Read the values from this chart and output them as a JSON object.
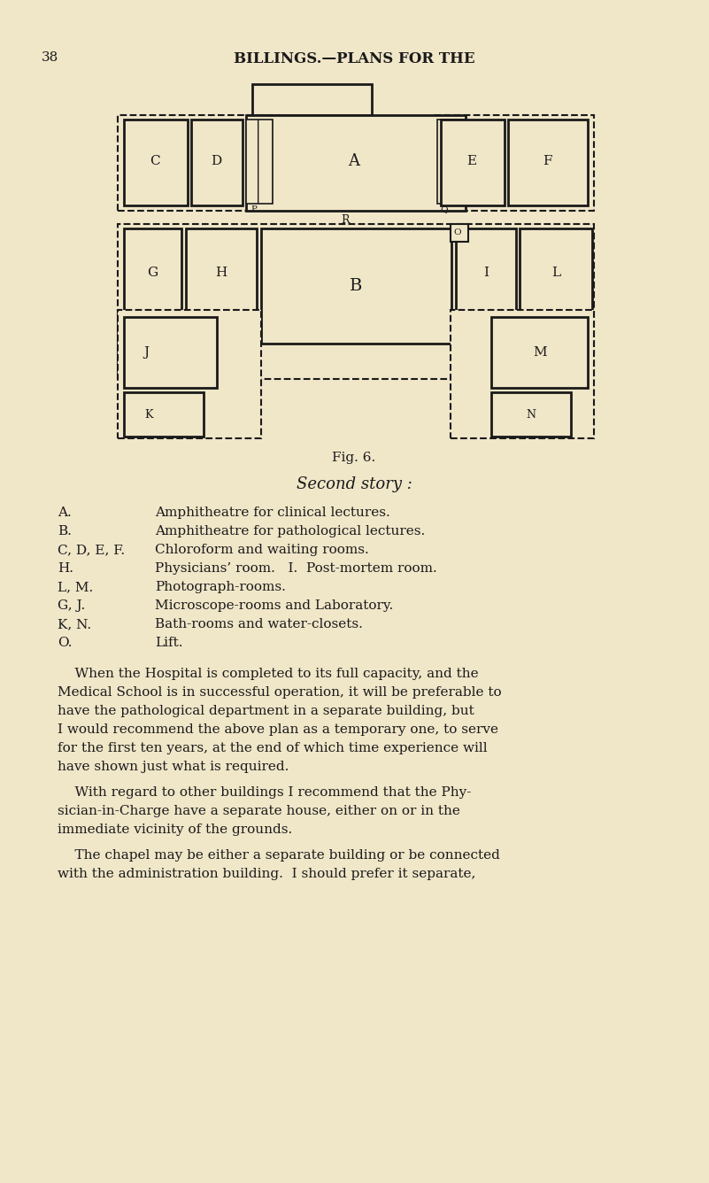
{
  "bg_color": "#f0e6c8",
  "text_color": "#1a1a1a",
  "page_number": "38",
  "header_text": "BILLINGS.—PLANS FOR THE",
  "fig_caption": "Fig. 6.",
  "subtitle": "Second story :",
  "legend_items": [
    [
      "A.",
      "Amphitheatre for clinical lectures."
    ],
    [
      "B.",
      "Amphitheatre for pathological lectures."
    ],
    [
      "C, D, E, F.",
      "Chloroform and waiting rooms."
    ],
    [
      "H.",
      "Physicians’ room.   I.  Post-mortem room."
    ],
    [
      "L, M.",
      "Photograph-rooms."
    ],
    [
      "G, J.",
      "Microscope-rooms and Laboratory."
    ],
    [
      "K, N.",
      "Bath-rooms and water-closets."
    ],
    [
      "O.",
      "Lift."
    ]
  ],
  "body_paragraphs_lines": [
    "    When the Hospital is completed to its full capacity, and the",
    "Medical School is in successful operation, it will be preferable to",
    "have the pathological department in a separate building, but",
    "I would recommend the above plan as a temporary one, to serve",
    "for the first ten years, at the end of which time experience will",
    "have shown just what is required.",
    "PARA",
    "    With regard to other buildings I recommend that the Phy-",
    "sician-in-Charge have a separate house, either on or in the",
    "immediate vicinity of the grounds.",
    "PARA",
    "    The chapel may be either a separate building or be connected",
    "with the administration building.  I should prefer it separate,"
  ]
}
